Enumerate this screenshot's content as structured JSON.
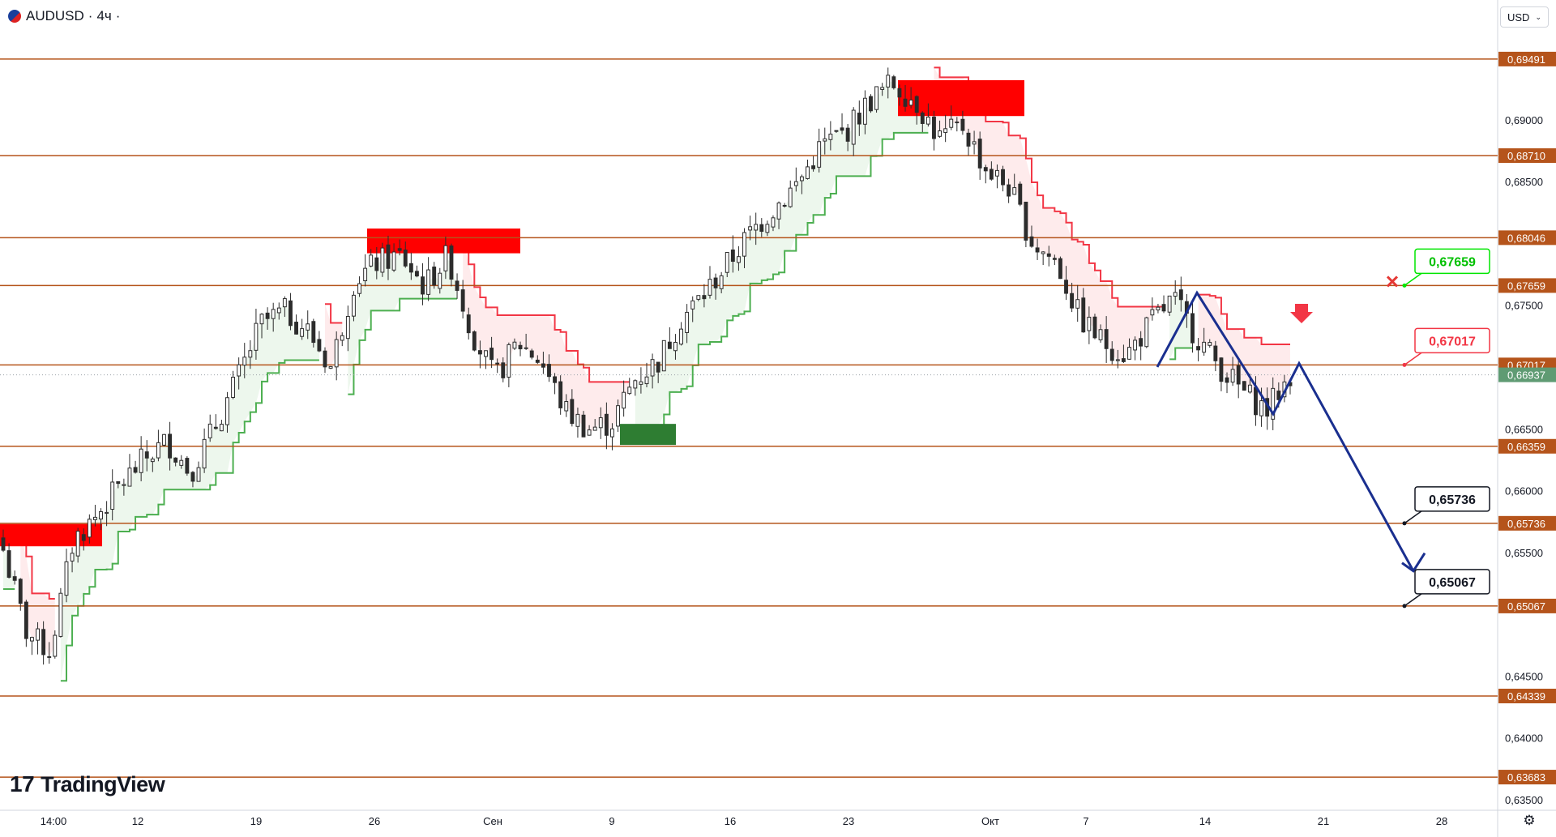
{
  "header": {
    "symbol": "AUDUSD",
    "separator1": "·",
    "timeframe": "4ч",
    "separator2": "·"
  },
  "currency": "USD",
  "watermark": "TradingView",
  "colors": {
    "level_line": "#b5541b",
    "level_label_bg": "#b5541b",
    "last_price_bg": "#5f9b73",
    "supertrend_up": "#4caf50",
    "supertrend_down": "#f23645",
    "zone_red": "#ff0000",
    "zone_green": "#2e7d32",
    "pattern": "#1a2f8f",
    "candle": "#2c2c2c"
  },
  "chart_data": {
    "type": "candlestick",
    "symbol": "AUDUSD",
    "interval": "4ч",
    "ylim": [
      0.635,
      0.697
    ],
    "y_ticks": [
      "0,69000",
      "0,68500",
      "0,67500",
      "0,66500",
      "0,66000",
      "0,65500",
      "0,64500",
      "0,64000",
      "0,63500"
    ],
    "x_ticks": [
      "14:00",
      "12",
      "19",
      "26",
      "Сен",
      "9",
      "16",
      "23",
      "Окт",
      "7",
      "14",
      "21",
      "28"
    ],
    "levels": [
      "0,69491",
      "0,68710",
      "0,68046",
      "0,67659",
      "0,67017",
      "0,66359",
      "0,65736",
      "0,65067",
      "0,64339",
      "0,63683"
    ],
    "last_price": "0,66937",
    "callouts": [
      {
        "label": "0,67659",
        "style": "green"
      },
      {
        "label": "0,67017",
        "style": "red"
      },
      {
        "label": "0,65736",
        "style": "black"
      },
      {
        "label": "0,65067",
        "style": "black"
      }
    ],
    "price_path": [
      [
        0.656,
        0.6552
      ],
      [
        0.6545,
        0.6485
      ],
      [
        0.6435,
        0.647
      ],
      [
        0.653,
        0.656
      ],
      [
        0.6555,
        0.658
      ],
      [
        0.659,
        0.6605
      ],
      [
        0.661,
        0.6625
      ],
      [
        0.6615,
        0.664
      ],
      [
        0.664,
        0.6615
      ],
      [
        0.662,
        0.665
      ],
      [
        0.6665,
        0.669
      ],
      [
        0.671,
        0.6735
      ],
      [
        0.674,
        0.6745
      ],
      [
        0.675,
        0.673
      ],
      [
        0.6745,
        0.67
      ],
      [
        0.6705,
        0.677
      ],
      [
        0.677,
        0.6785
      ],
      [
        0.678,
        0.679
      ],
      [
        0.6785,
        0.6765
      ],
      [
        0.677,
        0.679
      ],
      [
        0.6775,
        0.673
      ],
      [
        0.6735,
        0.669
      ],
      [
        0.669,
        0.672
      ],
      [
        0.6725,
        0.6705
      ],
      [
        0.67,
        0.6665
      ],
      [
        0.666,
        0.665
      ],
      [
        0.665,
        0.6655
      ],
      [
        0.6655,
        0.669
      ],
      [
        0.6695,
        0.6705
      ],
      [
        0.671,
        0.674
      ],
      [
        0.674,
        0.676
      ],
      [
        0.676,
        0.6785
      ],
      [
        0.6785,
        0.681
      ],
      [
        0.6815,
        0.683
      ],
      [
        0.683,
        0.685
      ],
      [
        0.6855,
        0.688
      ],
      [
        0.688,
        0.689
      ],
      [
        0.6895,
        0.6915
      ],
      [
        0.6915,
        0.693
      ],
      [
        0.6925,
        0.6915
      ],
      [
        0.691,
        0.6885
      ],
      [
        0.6885,
        0.6895
      ],
      [
        0.689,
        0.686
      ],
      [
        0.6855,
        0.6845
      ],
      [
        0.684,
        0.68
      ],
      [
        0.68,
        0.6785
      ],
      [
        0.678,
        0.674
      ],
      [
        0.674,
        0.672
      ],
      [
        0.672,
        0.671
      ],
      [
        0.671,
        0.6735
      ],
      [
        0.6735,
        0.6755
      ],
      [
        0.675,
        0.6725
      ],
      [
        0.672,
        0.67
      ],
      [
        0.67,
        0.668
      ],
      [
        0.6675,
        0.6665
      ],
      [
        0.667,
        0.6694
      ]
    ]
  }
}
